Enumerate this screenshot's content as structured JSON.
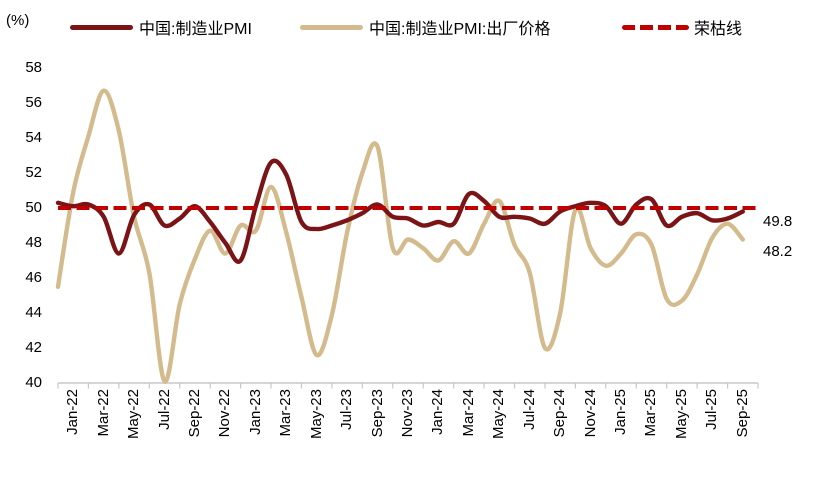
{
  "chart_data": {
    "type": "line",
    "title": "",
    "ylabel": "(%)",
    "xlabel": "",
    "ylim": [
      40,
      58
    ],
    "grid": false,
    "legend_position": "top",
    "y_ticks": [
      58,
      56,
      54,
      52,
      50,
      48,
      46,
      44,
      42,
      40
    ],
    "x_tick_labels": [
      "Jan-22",
      "Mar-22",
      "May-22",
      "Jul-22",
      "Sep-22",
      "Nov-22",
      "Jan-23",
      "Mar-23",
      "May-23",
      "Jul-23",
      "Sep-23",
      "Nov-23",
      "Jan-24",
      "Mar-24",
      "May-24",
      "Jul-24",
      "Sep-24",
      "Nov-24",
      "Jan-25",
      "Mar-25",
      "May-25",
      "Jul-25",
      "Sep-25"
    ],
    "months": [
      "Dec-21",
      "Jan-22",
      "Feb-22",
      "Mar-22",
      "Apr-22",
      "May-22",
      "Jun-22",
      "Jul-22",
      "Aug-22",
      "Sep-22",
      "Oct-22",
      "Nov-22",
      "Dec-22",
      "Jan-23",
      "Feb-23",
      "Mar-23",
      "Apr-23",
      "May-23",
      "Jun-23",
      "Jul-23",
      "Aug-23",
      "Sep-23",
      "Oct-23",
      "Nov-23",
      "Dec-23",
      "Jan-24",
      "Feb-24",
      "Mar-24",
      "Apr-24",
      "May-24",
      "Jun-24",
      "Jul-24",
      "Aug-24",
      "Sep-24",
      "Oct-24",
      "Nov-24",
      "Dec-24",
      "Jan-25",
      "Feb-25",
      "Mar-25",
      "Apr-25",
      "May-25",
      "Jun-25",
      "Jul-25",
      "Aug-25",
      "Sep-25"
    ],
    "series": [
      {
        "name": "中国:制造业PMI",
        "color": "#7B1416",
        "style": "solid",
        "values": [
          50.3,
          50.1,
          50.2,
          49.5,
          47.4,
          49.6,
          50.2,
          49.0,
          49.4,
          50.1,
          49.2,
          48.0,
          47.0,
          50.1,
          52.6,
          51.9,
          49.2,
          48.8,
          49.0,
          49.3,
          49.7,
          50.2,
          49.5,
          49.4,
          49.0,
          49.2,
          49.1,
          50.8,
          50.4,
          49.5,
          49.5,
          49.4,
          49.1,
          49.8,
          50.1,
          50.3,
          50.1,
          49.1,
          50.2,
          50.5,
          49.0,
          49.5,
          49.7,
          49.3,
          49.4,
          49.8
        ]
      },
      {
        "name": "中国:制造业PMI:出厂价格",
        "color": "#D3BB8E",
        "style": "solid",
        "values": [
          45.5,
          50.9,
          54.1,
          56.7,
          54.4,
          49.5,
          46.3,
          40.1,
          44.5,
          47.1,
          48.7,
          47.4,
          49.0,
          48.7,
          51.2,
          48.6,
          44.9,
          41.6,
          43.9,
          48.6,
          52.0,
          53.5,
          47.7,
          48.2,
          47.7,
          47.0,
          48.1,
          47.4,
          49.1,
          50.4,
          47.9,
          46.3,
          42.0,
          44.0,
          49.9,
          47.7,
          46.7,
          47.4,
          48.5,
          47.9,
          44.8,
          44.7,
          46.2,
          48.3,
          49.1,
          48.2
        ]
      },
      {
        "name": "荣枯线",
        "color": "#C00000",
        "style": "dashed",
        "value": 50
      }
    ],
    "annotations": [
      {
        "text": "49.8",
        "value": 49.8,
        "series": "中国:制造业PMI"
      },
      {
        "text": "48.2",
        "value": 48.2,
        "series": "中国:制造业PMI:出厂价格"
      }
    ],
    "axis_color": "#c8c8c8"
  },
  "legend": {
    "items": [
      {
        "label": "中国:制造业PMI"
      },
      {
        "label": "中国:制造业PMI:出厂价格"
      },
      {
        "label": "荣枯线"
      }
    ]
  }
}
